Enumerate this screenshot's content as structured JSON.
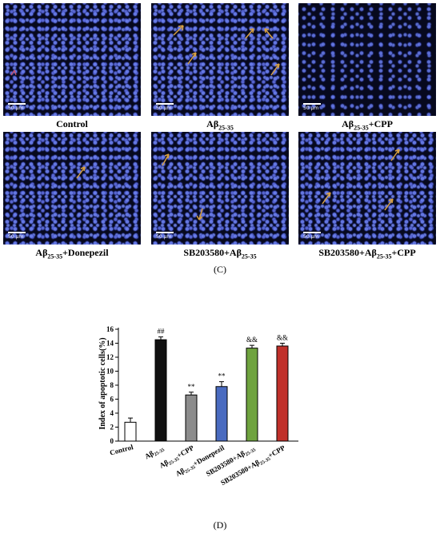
{
  "panel_c": {
    "images": [
      {
        "label_main": "Control",
        "label_sub": "",
        "label_post": "",
        "scale_label": "50 μm"
      },
      {
        "label_main": "Aβ",
        "label_sub": "25-35",
        "label_post": "",
        "scale_label": "50 μm"
      },
      {
        "label_main": "Aβ",
        "label_sub": "25-35",
        "label_post": "+CPP",
        "scale_label": "50 μm"
      },
      {
        "label_main": "Aβ",
        "label_sub": "25-35",
        "label_post": "+Donepezil",
        "scale_label": "50 μm"
      },
      {
        "label_main": "SB203580+Aβ",
        "label_sub": "25-35",
        "label_post": "",
        "scale_label": "50 μm"
      },
      {
        "label_main": "SB203580+Aβ",
        "label_sub": "25-35",
        "label_post": "+CPP",
        "scale_label": "50 μm"
      }
    ],
    "caption": "(C)"
  },
  "panel_d_caption": "(D)",
  "chart_data": {
    "type": "bar",
    "ylabel": "Index of apoptotic cells(%)",
    "ylim": [
      0,
      16
    ],
    "yticks": [
      "0",
      "2",
      "4",
      "6",
      "8",
      "10",
      "12",
      "14",
      "16"
    ],
    "categories": [
      {
        "main": "Control",
        "sub": "",
        "post": ""
      },
      {
        "main": "Aβ",
        "sub": "25-35",
        "post": ""
      },
      {
        "main": "Aβ",
        "sub": "25-35",
        "post": "+CPP"
      },
      {
        "main": "Aβ",
        "sub": "25-35",
        "post": "+Donepezil"
      },
      {
        "main": "SB203580+Aβ",
        "sub": "25-35",
        "post": ""
      },
      {
        "main": "SB203580+Aβ",
        "sub": "25-35",
        "post": "+CPP"
      }
    ],
    "values": [
      2.7,
      14.5,
      6.6,
      7.8,
      13.3,
      13.6
    ],
    "errors": [
      0.6,
      0.4,
      0.4,
      0.7,
      0.4,
      0.4
    ],
    "annotations": [
      "",
      "##",
      "**",
      "**",
      "&&",
      "&&"
    ],
    "colors": [
      "#ffffff",
      "#111111",
      "#8c8c8c",
      "#4a6bc0",
      "#6fa33f",
      "#c0302a"
    ]
  }
}
